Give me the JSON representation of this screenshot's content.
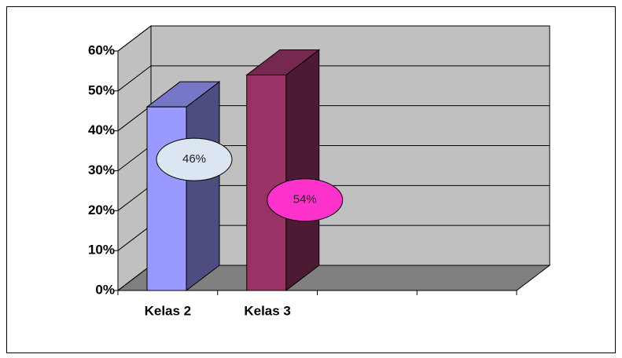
{
  "chart_data": {
    "type": "bar3d",
    "categories": [
      "Kelas 2",
      "Kelas 3",
      null,
      null
    ],
    "values": [
      46,
      54,
      null,
      null
    ],
    "value_labels": [
      "46%",
      "54%",
      null,
      null
    ],
    "colors": [
      "#9999ff",
      "#993366",
      null,
      null
    ],
    "label_colors": [
      "#dce6f2",
      "#ff33cc",
      null,
      null
    ],
    "ylim": [
      0,
      60
    ],
    "yticks": [
      {
        "value": 0,
        "label": "0%"
      },
      {
        "value": 10,
        "label": "10%"
      },
      {
        "value": 20,
        "label": "20%"
      },
      {
        "value": 30,
        "label": "30%"
      },
      {
        "value": 40,
        "label": "40%"
      },
      {
        "value": 50,
        "label": "50%"
      },
      {
        "value": 60,
        "label": "60%"
      }
    ],
    "grid": true,
    "wall_color": "#c0c0c0",
    "floor_color": "#808080"
  }
}
